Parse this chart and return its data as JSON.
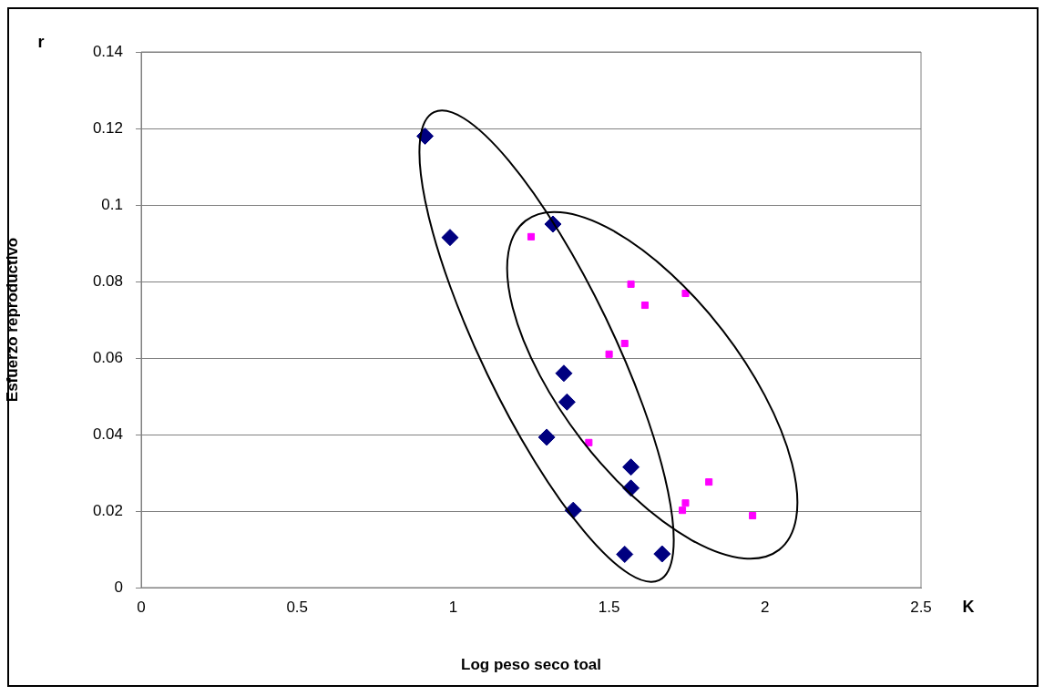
{
  "chart_data": {
    "type": "scatter",
    "xlabel": "Log peso seco toal",
    "ylabel": "Esfuerzo reproductivo",
    "annotations": [
      "r",
      "K"
    ],
    "xlim": [
      0,
      2.5
    ],
    "xticks": [
      0,
      0.5,
      1,
      1.5,
      2,
      2.5
    ],
    "ylim": [
      0,
      0.14
    ],
    "yticks": [
      0,
      0.02,
      0.04,
      0.06,
      0.08,
      0.1,
      0.12,
      0.14
    ],
    "grid": "y",
    "legend": false,
    "series": [
      {
        "color": "#000080",
        "marker": "diamond",
        "x": [
          0.91,
          0.99,
          1.32,
          1.355,
          1.365,
          1.3,
          1.385,
          1.57,
          1.57,
          1.55,
          1.67
        ],
        "values": [
          0.118,
          0.0915,
          0.095,
          0.056,
          0.0485,
          0.0393,
          0.0202,
          0.0315,
          0.026,
          0.0087,
          0.0088
        ]
      },
      {
        "color": "#ff00ff",
        "marker": "square",
        "x": [
          1.25,
          1.57,
          1.615,
          1.745,
          1.55,
          1.5,
          1.435,
          1.82,
          1.745,
          1.735,
          1.96
        ],
        "values": [
          0.0917,
          0.0793,
          0.0738,
          0.0769,
          0.0638,
          0.061,
          0.0379,
          0.0276,
          0.0221,
          0.0202,
          0.0188
        ]
      }
    ]
  }
}
